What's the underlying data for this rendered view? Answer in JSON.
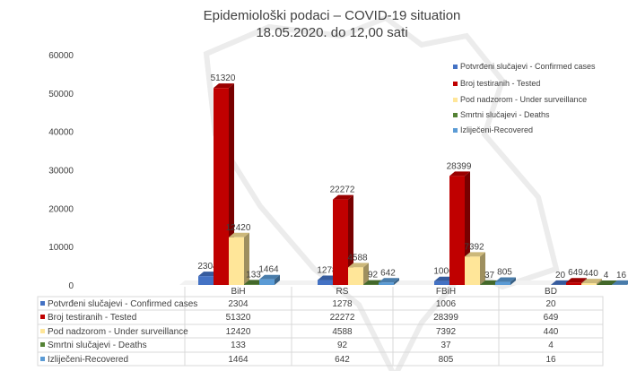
{
  "chart_data": {
    "type": "bar",
    "title": "Epidemiološki podaci – COVID-19 situation",
    "subtitle": "18.05.2020. do 12,00 sati",
    "categories": [
      "BiH",
      "RS",
      "FBiH",
      "BD"
    ],
    "ylim": [
      0,
      60000
    ],
    "yticks": [
      "0",
      "10000",
      "20000",
      "30000",
      "40000",
      "50000",
      "60000"
    ],
    "legend_position": "right",
    "series": [
      {
        "name": "Potvrđeni slučajevi - Confirmed cases",
        "color": "#4472c4",
        "values": [
          2304,
          1278,
          1006,
          20
        ]
      },
      {
        "name": "Broj testiranih - Tested",
        "color": "#c00000",
        "values": [
          51320,
          22272,
          28399,
          649
        ]
      },
      {
        "name": "Pod nadzorom - Under surveillance",
        "color": "#ffe699",
        "values": [
          12420,
          4588,
          7392,
          440
        ]
      },
      {
        "name": "Smrtni slučajevi - Deaths",
        "color": "#548235",
        "values": [
          133,
          92,
          37,
          4
        ]
      },
      {
        "name": "Izliječeni-Recovered",
        "color": "#5b9bd5",
        "values": [
          1464,
          642,
          805,
          16
        ]
      }
    ]
  }
}
